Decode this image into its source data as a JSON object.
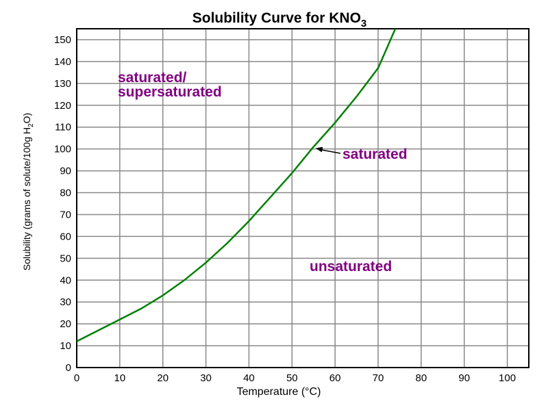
{
  "chart_data": {
    "type": "line",
    "title": "Solubility Curve for KNO",
    "title_subscript": "3",
    "xlabel": "Temperature (°C)",
    "ylabel": {
      "prefix": "Solubility (grams of solute/100g H",
      "subscript": "2",
      "suffix": "O)"
    },
    "xlim": [
      0,
      105
    ],
    "ylim": [
      0,
      155
    ],
    "x_ticks": [
      0,
      10,
      20,
      30,
      40,
      50,
      60,
      70,
      80,
      90,
      100
    ],
    "y_ticks": [
      0,
      10,
      20,
      30,
      40,
      50,
      60,
      70,
      80,
      90,
      100,
      110,
      120,
      130,
      140,
      150
    ],
    "grid": true,
    "series": [
      {
        "color": "#008000",
        "x": [
          0,
          5,
          10,
          15,
          20,
          25,
          30,
          35,
          40,
          45,
          50,
          55,
          60,
          65,
          70,
          72,
          74
        ],
        "y": [
          12,
          17,
          22,
          27,
          33,
          40,
          48,
          57,
          67,
          78,
          89,
          101,
          112,
          124,
          137,
          146,
          155
        ]
      }
    ],
    "annotations": [
      {
        "text": "saturated/",
        "region": "upper-left"
      },
      {
        "text": "supersaturated",
        "region": "upper-left"
      },
      {
        "text": "saturated",
        "arrow_to": {
          "x": 55,
          "y": 101
        }
      },
      {
        "text": "unsaturated",
        "region": "lower-right"
      }
    ]
  },
  "colors": {
    "grid": "#888888",
    "axes": "#000000",
    "curve": "#008000",
    "annotation": "#800080",
    "plot_background": "#ffffff"
  }
}
